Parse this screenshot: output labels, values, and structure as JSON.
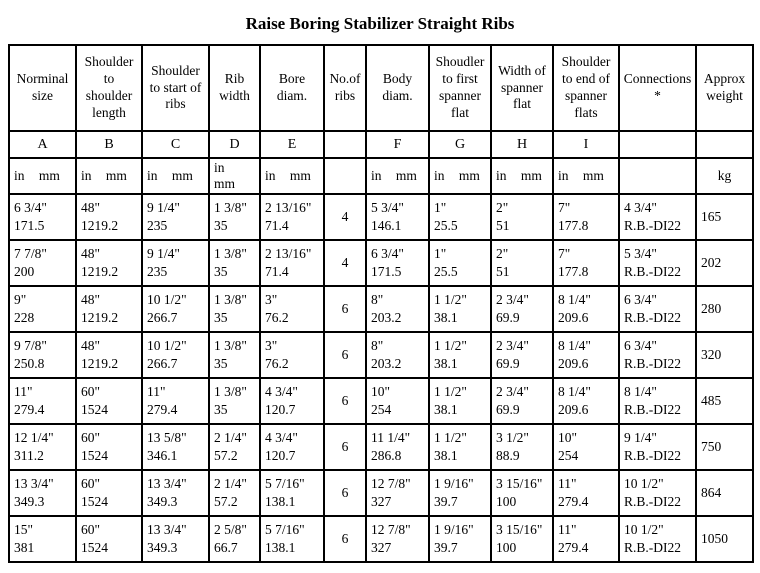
{
  "title": "Raise Boring Stabilizer Straight Ribs",
  "table": {
    "columns": [
      {
        "label": "Norminal size"
      },
      {
        "label": "Shoulder to shoulder length"
      },
      {
        "label": "Shoulder to  start of ribs"
      },
      {
        "label": "Rib width"
      },
      {
        "label": "Bore diam."
      },
      {
        "label": "No.of ribs"
      },
      {
        "label": "Body diam."
      },
      {
        "label": "Shoudler to first spanner flat"
      },
      {
        "label": "Width of spanner flat"
      },
      {
        "label": "Shoulder to end of spanner flats"
      },
      {
        "label": "Connections\n*"
      },
      {
        "label": "Approx weight"
      }
    ],
    "letters": [
      "A",
      "B",
      "C",
      "D",
      "E",
      "",
      "F",
      "G",
      "H",
      "I",
      "",
      ""
    ],
    "units": [
      "in mm",
      "in mm",
      "in mm",
      "in mm",
      "in mm",
      "",
      "in mm",
      "in mm",
      "in mm",
      "in mm",
      "",
      "kg"
    ],
    "rows": [
      [
        [
          "6 3/4\"",
          "171.5"
        ],
        [
          "48\"",
          "1219.2"
        ],
        [
          "9 1/4\"",
          "235"
        ],
        [
          "1 3/8\"",
          "35"
        ],
        [
          "2 13/16\"",
          "71.4"
        ],
        [
          "4"
        ],
        [
          "5 3/4\"",
          "146.1"
        ],
        [
          "1\"",
          "25.5"
        ],
        [
          "2\"",
          "51"
        ],
        [
          "7\"",
          "177.8"
        ],
        [
          "4 3/4\"",
          "R.B.-DI22"
        ],
        [
          "165"
        ]
      ],
      [
        [
          "7 7/8\"",
          "200"
        ],
        [
          "48\"",
          "1219.2"
        ],
        [
          "9 1/4\"",
          "235"
        ],
        [
          "1 3/8\"",
          "35"
        ],
        [
          "2 13/16\"",
          "71.4"
        ],
        [
          "4"
        ],
        [
          "6 3/4\"",
          "171.5"
        ],
        [
          "1\"",
          "25.5"
        ],
        [
          "2\"",
          "51"
        ],
        [
          "7\"",
          "177.8"
        ],
        [
          "5 3/4\"",
          "R.B.-DI22"
        ],
        [
          "202"
        ]
      ],
      [
        [
          "9\"",
          "228"
        ],
        [
          "48\"",
          "1219.2"
        ],
        [
          "10 1/2\"",
          "266.7"
        ],
        [
          "1 3/8\"",
          "35"
        ],
        [
          "3\"",
          "76.2"
        ],
        [
          "6"
        ],
        [
          "8\"",
          "203.2"
        ],
        [
          "1 1/2\"",
          "38.1"
        ],
        [
          "2 3/4\"",
          "69.9"
        ],
        [
          "8 1/4\"",
          "209.6"
        ],
        [
          "6 3/4\"",
          "R.B.-DI22"
        ],
        [
          "280"
        ]
      ],
      [
        [
          "9 7/8\"",
          "250.8"
        ],
        [
          "48\"",
          "1219.2"
        ],
        [
          "10 1/2\"",
          "266.7"
        ],
        [
          "1 3/8\"",
          "35"
        ],
        [
          "3\"",
          "76.2"
        ],
        [
          "6"
        ],
        [
          "8\"",
          "203.2"
        ],
        [
          "1 1/2\"",
          "38.1"
        ],
        [
          "2 3/4\"",
          "69.9"
        ],
        [
          "8 1/4\"",
          "209.6"
        ],
        [
          "6 3/4\"",
          "R.B.-DI22"
        ],
        [
          "320"
        ]
      ],
      [
        [
          "11\"",
          "279.4"
        ],
        [
          "60\"",
          "1524"
        ],
        [
          "11\"",
          "279.4"
        ],
        [
          "1 3/8\"",
          "35"
        ],
        [
          "4 3/4\"",
          "120.7"
        ],
        [
          "6"
        ],
        [
          "10\"",
          "254"
        ],
        [
          "1 1/2\"",
          "38.1"
        ],
        [
          "2 3/4\"",
          "69.9"
        ],
        [
          "8 1/4\"",
          "209.6"
        ],
        [
          "8 1/4\"",
          "R.B.-DI22"
        ],
        [
          "485"
        ]
      ],
      [
        [
          "12 1/4\"",
          "311.2"
        ],
        [
          "60\"",
          "1524"
        ],
        [
          "13 5/8\"",
          "346.1"
        ],
        [
          "2 1/4\"",
          "57.2"
        ],
        [
          "4 3/4\"",
          "120.7"
        ],
        [
          "6"
        ],
        [
          "11 1/4\"",
          "286.8"
        ],
        [
          "1 1/2\"",
          "38.1"
        ],
        [
          "3 1/2\"",
          "88.9"
        ],
        [
          "10\"",
          "254"
        ],
        [
          "9 1/4\"",
          "R.B.-DI22"
        ],
        [
          "750"
        ]
      ],
      [
        [
          "13 3/4\"",
          "349.3"
        ],
        [
          "60\"",
          "1524"
        ],
        [
          "13 3/4\"",
          "349.3"
        ],
        [
          "2 1/4\"",
          "57.2"
        ],
        [
          "5 7/16\"",
          "138.1"
        ],
        [
          "6"
        ],
        [
          "12 7/8\"",
          "327"
        ],
        [
          "1 9/16\"",
          "39.7"
        ],
        [
          "3 15/16\"",
          "100"
        ],
        [
          "11\"",
          "279.4"
        ],
        [
          "10 1/2\"",
          "R.B.-DI22"
        ],
        [
          "864"
        ]
      ],
      [
        [
          "15\"",
          "381"
        ],
        [
          "60\"",
          "1524"
        ],
        [
          "13 3/4\"",
          "349.3"
        ],
        [
          "2 5/8\"",
          "66.7"
        ],
        [
          "5 7/16\"",
          "138.1"
        ],
        [
          "6"
        ],
        [
          "12 7/8\"",
          "327"
        ],
        [
          "1 9/16\"",
          "39.7"
        ],
        [
          "3 15/16\"",
          "100"
        ],
        [
          "11\"",
          "279.4"
        ],
        [
          "10 1/2\"",
          "R.B.-DI22"
        ],
        [
          "1050"
        ]
      ]
    ]
  }
}
